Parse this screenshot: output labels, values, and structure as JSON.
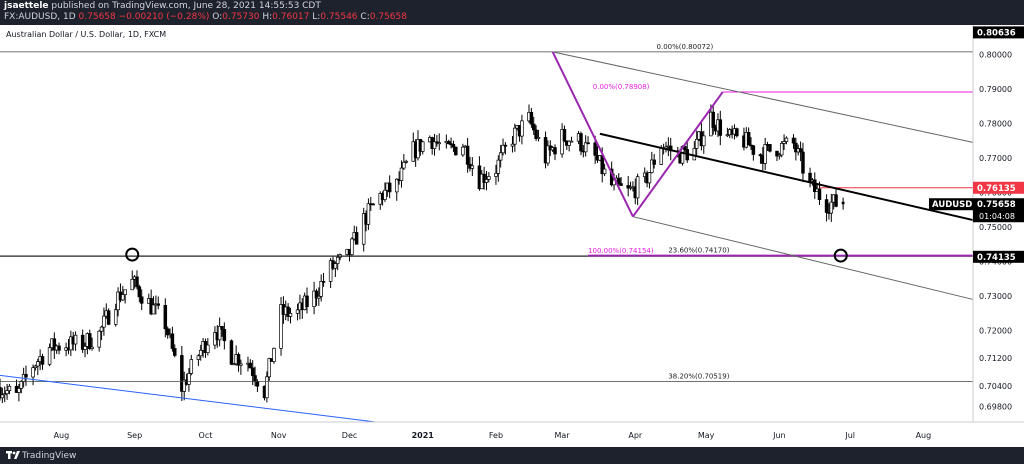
{
  "header": {
    "user": "jsaettele",
    "published": "published on TradingView.com, June 28, 2021 14:55:53 CDT",
    "symbol": "FX:AUDUSD, 1D",
    "last": "0.75658",
    "change": "−0.00210 (−0.28%)",
    "o_label": "O:",
    "o": "0.75730",
    "h_label": "H:",
    "h": "0.76017",
    "l_label": "L:",
    "l": "0.75546",
    "c_label": "C:",
    "c": "0.75658"
  },
  "footer": {
    "brand": "TradingView"
  },
  "colors": {
    "up": "#ffffff",
    "down": "#000000",
    "fib_pink": "#e91ee0",
    "purple": "#9b27b0",
    "red": "#f23645",
    "blue": "#2962ff"
  },
  "chart_data": {
    "type": "candlestick",
    "title": "Australian Dollar / U.S. Dollar, 1D, FXCM",
    "currency": "USD",
    "ylim": [
      0.6935,
      0.8085
    ],
    "y_ticks": [
      "0.69800",
      "0.70400",
      "0.71200",
      "0.72000",
      "0.73000",
      "0.74000",
      "0.75000",
      "0.76000",
      "0.77000",
      "0.78000",
      "0.79000",
      "0.80000"
    ],
    "x_ticks": [
      {
        "label": "Aug",
        "date": "2020-08-01"
      },
      {
        "label": "Sep",
        "date": "2020-09-01"
      },
      {
        "label": "Oct",
        "date": "2020-10-01"
      },
      {
        "label": "Nov",
        "date": "2020-11-01"
      },
      {
        "label": "Dec",
        "date": "2020-12-01"
      },
      {
        "label": "2021",
        "date": "2021-01-01"
      },
      {
        "label": "Feb",
        "date": "2021-02-01"
      },
      {
        "label": "Mar",
        "date": "2021-03-01"
      },
      {
        "label": "Apr",
        "date": "2021-04-01"
      },
      {
        "label": "May",
        "date": "2021-05-01"
      },
      {
        "label": "Jun",
        "date": "2021-06-01"
      },
      {
        "label": "Jul",
        "date": "2021-07-01"
      },
      {
        "label": "Aug",
        "date": "2021-08-01"
      }
    ],
    "x_range": [
      "2020-07-06",
      "2021-08-22"
    ],
    "symbol_label": "AUDUSD",
    "last_price": "0.75658",
    "countdown": "01:04:08",
    "price_labels": [
      {
        "value": 0.80636,
        "text": "0.80636"
      },
      {
        "value": 0.76135,
        "text": "0.76135"
      },
      {
        "value": 0.74135,
        "text": "0.74135"
      }
    ],
    "annotations": [
      {
        "text": "0.00%(0.80072)",
        "date": "2021-04-10",
        "y": 0.8007
      },
      {
        "text": "0.00%(0.78908)",
        "date": "2021-03-14",
        "y": 0.7891
      },
      {
        "text": "100.00%(0.74154)",
        "date": "2021-03-12",
        "y": 0.74154
      },
      {
        "text": "23.60%(0.74170)",
        "date": "2021-04-15",
        "y": 0.7417
      },
      {
        "text": "38.20%(0.70519)",
        "date": "2021-04-15",
        "y": 0.70519
      }
    ],
    "closes": [
      [
        "2020-07-06",
        0.7035
      ],
      [
        "2020-07-13",
        0.7008
      ],
      [
        "2020-07-20",
        0.71
      ],
      [
        "2020-07-27",
        0.715
      ],
      [
        "2020-08-03",
        0.716
      ],
      [
        "2020-08-10",
        0.716
      ],
      [
        "2020-08-17",
        0.719
      ],
      [
        "2020-08-24",
        0.729
      ],
      [
        "2020-08-31",
        0.734
      ],
      [
        "2020-09-07",
        0.728
      ],
      [
        "2020-09-14",
        0.722
      ],
      [
        "2020-09-21",
        0.7035
      ],
      [
        "2020-09-28",
        0.713
      ],
      [
        "2020-10-05",
        0.721
      ],
      [
        "2020-10-12",
        0.713
      ],
      [
        "2020-10-19",
        0.711
      ],
      [
        "2020-10-26",
        0.7025
      ],
      [
        "2020-11-02",
        0.725
      ],
      [
        "2020-11-09",
        0.725
      ],
      [
        "2020-11-16",
        0.73
      ],
      [
        "2020-11-23",
        0.738
      ],
      [
        "2020-11-30",
        0.741
      ],
      [
        "2020-12-07",
        0.752
      ],
      [
        "2020-12-14",
        0.759
      ],
      [
        "2020-12-21",
        0.762
      ],
      [
        "2020-12-28",
        0.772
      ],
      [
        "2021-01-04",
        0.776
      ],
      [
        "2021-01-11",
        0.772
      ],
      [
        "2021-01-18",
        0.774
      ],
      [
        "2021-01-25",
        0.764
      ],
      [
        "2021-02-01",
        0.767
      ],
      [
        "2021-02-08",
        0.776
      ],
      [
        "2021-02-15",
        0.781
      ],
      [
        "2021-02-22",
        0.77
      ],
      [
        "2021-03-01",
        0.776
      ],
      [
        "2021-03-08",
        0.775
      ],
      [
        "2021-03-15",
        0.77
      ],
      [
        "2021-03-22",
        0.762
      ],
      [
        "2021-03-29",
        0.76
      ],
      [
        "2021-04-05",
        0.763
      ],
      [
        "2021-04-12",
        0.774
      ],
      [
        "2021-04-19",
        0.771
      ],
      [
        "2021-04-26",
        0.772
      ],
      [
        "2021-05-03",
        0.782
      ],
      [
        "2021-05-10",
        0.776
      ],
      [
        "2021-05-17",
        0.775
      ],
      [
        "2021-05-24",
        0.771
      ],
      [
        "2021-05-31",
        0.773
      ],
      [
        "2021-06-07",
        0.774
      ],
      [
        "2021-06-14",
        0.762
      ],
      [
        "2021-06-21",
        0.757
      ],
      [
        "2021-06-28",
        0.7566
      ]
    ]
  }
}
